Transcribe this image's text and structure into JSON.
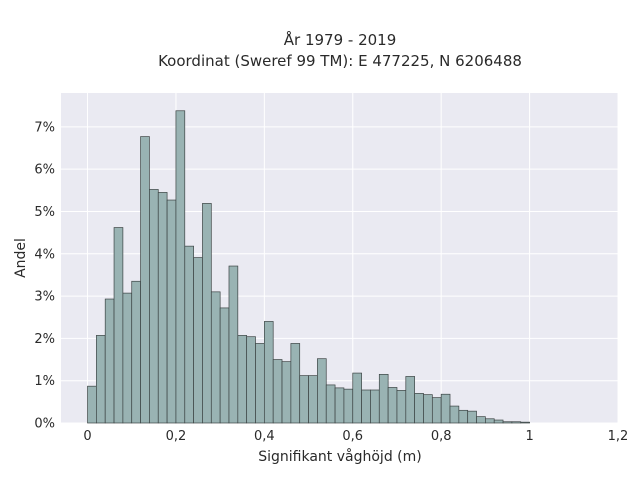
{
  "chart_data": {
    "type": "bar",
    "title": "År 1979 - 2019",
    "subtitle": "Koordinat (Sweref 99 TM): E 477225, N 6206488",
    "xlabel": "Signifikant våghöjd (m)",
    "ylabel": "Andel",
    "xlim": [
      -0.06,
      1.2
    ],
    "ylim": [
      0,
      0.078
    ],
    "x_ticks": [
      0,
      0.2,
      0.4,
      0.6,
      0.8,
      1,
      1.2
    ],
    "x_tick_labels": [
      "0",
      "0,2",
      "0,4",
      "0,6",
      "0,8",
      "1",
      "1,2"
    ],
    "y_ticks": [
      0,
      0.01,
      0.02,
      0.03,
      0.04,
      0.05,
      0.06,
      0.07
    ],
    "y_tick_labels": [
      "0%",
      "1%",
      "2%",
      "3%",
      "4%",
      "5%",
      "6%",
      "7%"
    ],
    "grid": true,
    "bin_width": 0.02,
    "bin_start": 0,
    "values": [
      0.0087,
      0.0207,
      0.0293,
      0.0462,
      0.0307,
      0.0335,
      0.0677,
      0.0552,
      0.0545,
      0.0527,
      0.0738,
      0.0418,
      0.0391,
      0.0519,
      0.031,
      0.0272,
      0.0371,
      0.0207,
      0.0204,
      0.0188,
      0.024,
      0.015,
      0.0145,
      0.0188,
      0.0112,
      0.0112,
      0.0152,
      0.009,
      0.0083,
      0.008,
      0.0118,
      0.0078,
      0.0078,
      0.0115,
      0.0084,
      0.0077,
      0.011,
      0.007,
      0.0067,
      0.006,
      0.0068,
      0.004,
      0.003,
      0.0028,
      0.0015,
      0.001,
      0.0007,
      0.0003,
      0.0003,
      0.0002
    ],
    "colors": {
      "bar_fill": "#99b3b3",
      "bar_edge": "#3c4444",
      "plot_bg": "#eaeaf2",
      "grid": "#ffffff"
    }
  }
}
